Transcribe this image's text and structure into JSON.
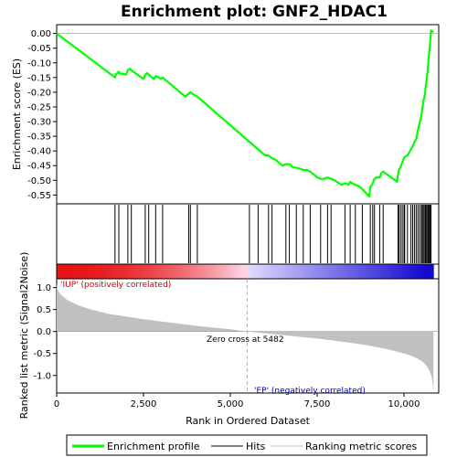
{
  "chart_data": {
    "type": "line",
    "title": "Enrichment plot: GNF2_HDAC1",
    "xlabel": "Rank in Ordered Dataset",
    "ylabel_top": "Enrichment score (ES)",
    "ylabel_bottom": "Ranked list metric (Signal2Noise)",
    "x_max": 10850,
    "xlim": [
      0,
      11000
    ],
    "x_ticks": [
      0,
      2500,
      5000,
      7500,
      10000
    ],
    "x_tick_labels": [
      "0",
      "2,500",
      "5,000",
      "7,500",
      "10,000"
    ],
    "es_ylim": [
      -0.58,
      0.03
    ],
    "es_ticks": [
      0.0,
      -0.05,
      -0.1,
      -0.15,
      -0.2,
      -0.25,
      -0.3,
      -0.35,
      -0.4,
      -0.45,
      -0.5,
      -0.55
    ],
    "es_tick_labels": [
      "0.00",
      "-0.05",
      "-0.10",
      "-0.15",
      "-0.20",
      "-0.25",
      "-0.30",
      "-0.35",
      "-0.40",
      "-0.45",
      "-0.50",
      "-0.55"
    ],
    "metric_ylim": [
      -1.4,
      1.2
    ],
    "metric_ticks": [
      1.0,
      0.5,
      0.0,
      -0.5,
      -1.0
    ],
    "metric_tick_labels": [
      "1.0",
      "0.5",
      "0.0",
      "-0.5",
      "-1.0"
    ],
    "grid": false,
    "series": [
      {
        "name": "Enrichment profile",
        "color": "#00ff00",
        "x": [
          0,
          1680,
          1700,
          1790,
          1800,
          2000,
          2050,
          2100,
          2150,
          2500,
          2550,
          2600,
          2650,
          2800,
          2850,
          2950,
          3000,
          3050,
          3700,
          3800,
          3850,
          3900,
          4050,
          6000,
          6100,
          6200,
          6300,
          6500,
          6600,
          6700,
          6800,
          7000,
          7100,
          7200,
          7300,
          7500,
          7600,
          7700,
          7800,
          7900,
          8000,
          8200,
          8300,
          8400,
          8450,
          8500,
          8600,
          8700,
          8800,
          9000,
          9030,
          9050,
          9100,
          9150,
          9200,
          9300,
          9350,
          9400,
          9800,
          9830,
          9850,
          9900,
          9950,
          10000,
          10020,
          10100,
          10150,
          10200,
          10250,
          10300,
          10350,
          10400,
          10450,
          10500,
          10530,
          10560,
          10600,
          10620,
          10650,
          10680,
          10700,
          10720,
          10750,
          10780,
          10850
        ],
        "y": [
          0.0,
          -0.15,
          -0.14,
          -0.13,
          -0.135,
          -0.14,
          -0.125,
          -0.12,
          -0.125,
          -0.155,
          -0.14,
          -0.135,
          -0.14,
          -0.155,
          -0.145,
          -0.15,
          -0.155,
          -0.15,
          -0.215,
          -0.205,
          -0.2,
          -0.205,
          -0.215,
          -0.415,
          -0.415,
          -0.425,
          -0.43,
          -0.45,
          -0.445,
          -0.445,
          -0.455,
          -0.46,
          -0.465,
          -0.465,
          -0.47,
          -0.49,
          -0.495,
          -0.495,
          -0.49,
          -0.495,
          -0.5,
          -0.515,
          -0.51,
          -0.515,
          -0.505,
          -0.51,
          -0.515,
          -0.52,
          -0.53,
          -0.555,
          -0.525,
          -0.52,
          -0.51,
          -0.495,
          -0.49,
          -0.49,
          -0.475,
          -0.47,
          -0.505,
          -0.48,
          -0.465,
          -0.455,
          -0.44,
          -0.425,
          -0.42,
          -0.415,
          -0.405,
          -0.395,
          -0.385,
          -0.37,
          -0.36,
          -0.33,
          -0.305,
          -0.28,
          -0.255,
          -0.23,
          -0.21,
          -0.185,
          -0.16,
          -0.13,
          -0.1,
          -0.07,
          -0.035,
          0.01,
          0.005
        ]
      }
    ],
    "hits": [
      1680,
      1790,
      2050,
      2150,
      2550,
      2650,
      2850,
      3050,
      3800,
      3850,
      4050,
      5550,
      5800,
      6100,
      6200,
      6600,
      6700,
      6900,
      7100,
      7300,
      7600,
      7800,
      7900,
      8300,
      8450,
      8600,
      8800,
      9030,
      9100,
      9150,
      9300,
      9400,
      9830,
      9850,
      9900,
      9950,
      10000,
      10020,
      10100,
      10200,
      10250,
      10300,
      10350,
      10400,
      10450,
      10500,
      10530,
      10560,
      10600,
      10620,
      10650,
      10680,
      10700,
      10720,
      10750,
      10780
    ],
    "metric_curve": {
      "x": [
        0,
        30,
        100,
        300,
        600,
        1000,
        1500,
        2000,
        2500,
        3000,
        3500,
        4000,
        4500,
        5000,
        5482,
        6000,
        6500,
        7000,
        7500,
        8000,
        8500,
        9000,
        9500,
        9800,
        10000,
        10200,
        10400,
        10550,
        10650,
        10720,
        10770,
        10800,
        10830,
        10850
      ],
      "y": [
        1.08,
        0.95,
        0.85,
        0.72,
        0.6,
        0.5,
        0.4,
        0.34,
        0.28,
        0.23,
        0.18,
        0.13,
        0.09,
        0.05,
        0.0,
        -0.04,
        -0.08,
        -0.12,
        -0.16,
        -0.21,
        -0.26,
        -0.32,
        -0.4,
        -0.46,
        -0.5,
        -0.55,
        -0.62,
        -0.7,
        -0.78,
        -0.87,
        -0.97,
        -1.05,
        -1.2,
        -1.35
      ]
    },
    "zero_cross_x": 5482,
    "zero_cross_label": "Zero cross at 5482",
    "pos_label": "'IUP' (positively correlated)",
    "neg_label": "'EP' (negatively correlated)",
    "pos_color": "#cc0000",
    "neg_color": "#0000cc",
    "legend": [
      {
        "label": "Enrichment profile",
        "color": "#00ff00"
      },
      {
        "label": "Hits",
        "color": "#000000"
      },
      {
        "label": "Ranking metric scores",
        "color": "#c0c0c0"
      }
    ]
  }
}
